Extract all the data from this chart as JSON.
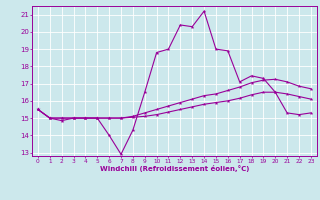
{
  "xlabel": "Windchill (Refroidissement éolien,°C)",
  "xlim": [
    -0.5,
    23.5
  ],
  "ylim": [
    12.8,
    21.5
  ],
  "yticks": [
    13,
    14,
    15,
    16,
    17,
    18,
    19,
    20,
    21
  ],
  "xticks": [
    0,
    1,
    2,
    3,
    4,
    5,
    6,
    7,
    8,
    9,
    10,
    11,
    12,
    13,
    14,
    15,
    16,
    17,
    18,
    19,
    20,
    21,
    22,
    23
  ],
  "bg_color": "#cce8ec",
  "line_color": "#990099",
  "grid_color": "#ffffff",
  "line1_x": [
    0,
    1,
    2,
    3,
    4,
    5,
    6,
    7,
    8,
    9,
    10,
    11,
    12,
    13,
    14,
    15,
    16,
    17,
    18,
    19,
    20,
    21,
    22,
    23
  ],
  "line1_y": [
    15.5,
    15.0,
    14.85,
    15.0,
    15.0,
    15.0,
    14.0,
    12.9,
    14.3,
    16.5,
    18.8,
    19.0,
    20.4,
    20.3,
    21.2,
    19.0,
    18.9,
    17.1,
    17.45,
    17.3,
    16.5,
    15.3,
    15.2,
    15.3
  ],
  "line2_x": [
    0,
    1,
    2,
    3,
    4,
    5,
    6,
    7,
    8,
    9,
    10,
    11,
    12,
    13,
    14,
    15,
    16,
    17,
    18,
    19,
    20,
    21,
    22,
    23
  ],
  "line2_y": [
    15.5,
    15.0,
    15.0,
    15.0,
    15.0,
    15.0,
    15.0,
    15.0,
    15.1,
    15.3,
    15.5,
    15.7,
    15.9,
    16.1,
    16.3,
    16.4,
    16.6,
    16.8,
    17.05,
    17.2,
    17.25,
    17.1,
    16.85,
    16.7
  ],
  "line3_x": [
    0,
    1,
    2,
    3,
    4,
    5,
    6,
    7,
    8,
    9,
    10,
    11,
    12,
    13,
    14,
    15,
    16,
    17,
    18,
    19,
    20,
    21,
    22,
    23
  ],
  "line3_y": [
    15.5,
    15.0,
    15.0,
    15.0,
    15.0,
    15.0,
    15.0,
    15.0,
    15.05,
    15.1,
    15.2,
    15.35,
    15.5,
    15.65,
    15.8,
    15.9,
    16.0,
    16.15,
    16.35,
    16.5,
    16.5,
    16.4,
    16.25,
    16.1
  ]
}
